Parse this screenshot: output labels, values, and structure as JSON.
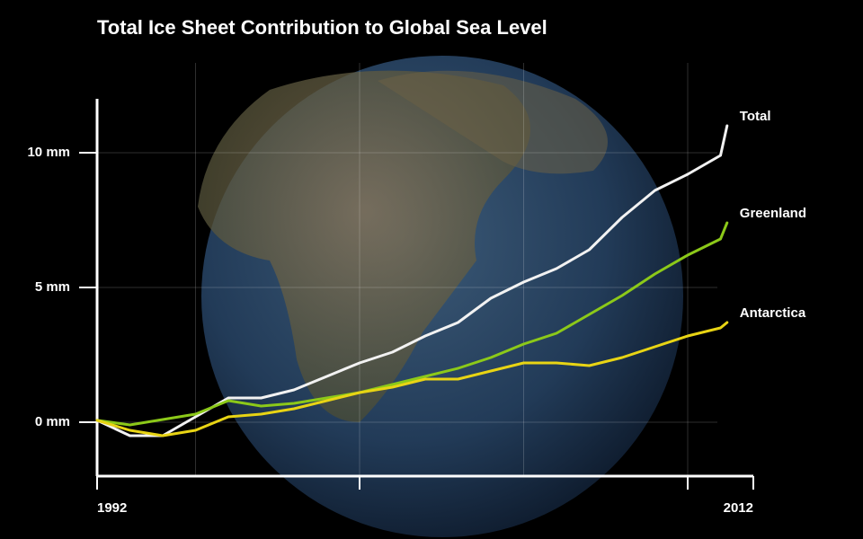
{
  "chart_data": {
    "type": "line",
    "title": "Total Ice Sheet Contribution to Global Sea Level",
    "x": [
      1992,
      1993,
      1994,
      1995,
      1996,
      1997,
      1998,
      1999,
      2000,
      2001,
      2002,
      2003,
      2004,
      2005,
      2006,
      2007,
      2008,
      2009,
      2010,
      2011,
      2011.2
    ],
    "series": [
      {
        "name": "Total",
        "color": "#f2f2f2",
        "values": [
          0.07,
          -0.5,
          -0.5,
          0.2,
          0.9,
          0.9,
          1.2,
          1.7,
          2.2,
          2.6,
          3.2,
          3.7,
          4.6,
          5.2,
          5.7,
          6.4,
          7.6,
          8.6,
          9.2,
          9.9,
          11.0
        ]
      },
      {
        "name": "Greenland",
        "color": "#8cc919",
        "values": [
          0.07,
          -0.1,
          0.1,
          0.3,
          0.8,
          0.6,
          0.7,
          0.9,
          1.1,
          1.4,
          1.7,
          2.0,
          2.4,
          2.9,
          3.3,
          4.0,
          4.7,
          5.5,
          6.2,
          6.8,
          7.4
        ]
      },
      {
        "name": "Antarctica",
        "color": "#e8d414",
        "values": [
          0.07,
          -0.3,
          -0.5,
          -0.3,
          0.2,
          0.3,
          0.5,
          0.8,
          1.1,
          1.3,
          1.6,
          1.6,
          1.9,
          2.2,
          2.2,
          2.1,
          2.4,
          2.8,
          3.2,
          3.5,
          3.7
        ]
      }
    ],
    "xlim": [
      1992,
      2012
    ],
    "xticks": [
      1992,
      {
        "value": 2000,
        "label": null
      },
      {
        "value": 2010,
        "label": null
      },
      2012
    ],
    "xgrid": [
      1995,
      2000,
      2005,
      2010
    ],
    "ylim": [
      -2,
      12
    ],
    "yticks": [
      {
        "value": 0,
        "label": "0 mm"
      },
      {
        "value": 5,
        "label": "5 mm"
      },
      {
        "value": 10,
        "label": "10 mm"
      }
    ],
    "grid": true
  }
}
